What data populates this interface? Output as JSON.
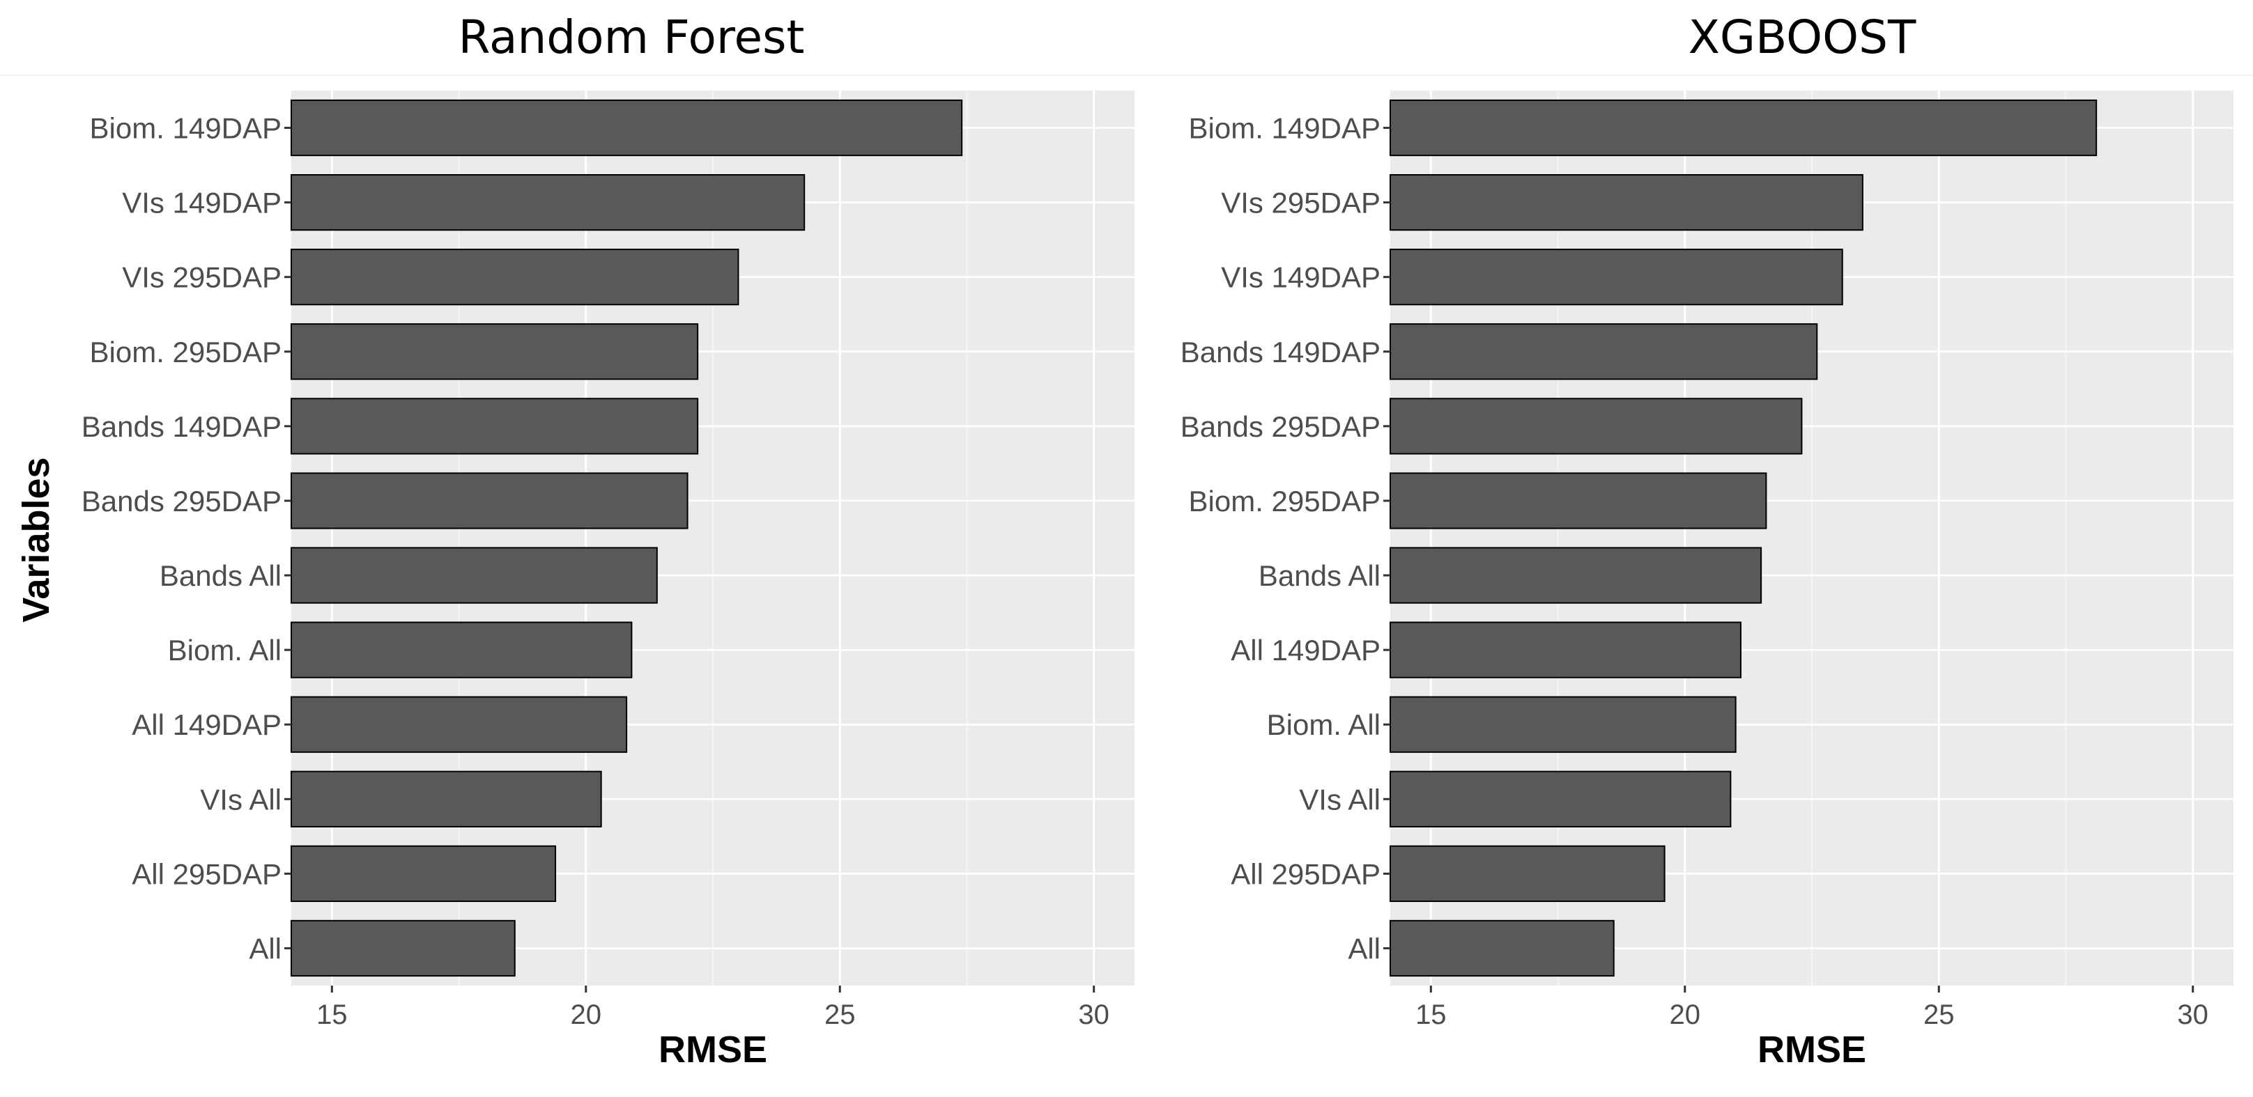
{
  "figure": {
    "ylabel": "Variables",
    "colors": {
      "panel_background": "#ebebeb",
      "grid_major": "#ffffff",
      "bar_fill": "#595959",
      "bar_outline": "#000000",
      "tick_text": "#4d4d4d"
    }
  },
  "chart_data": [
    {
      "type": "bar",
      "orientation": "horizontal",
      "title": "Random Forest",
      "xlabel": "RMSE",
      "ylabel": "Variables",
      "xlim": [
        14.2,
        30.8
      ],
      "xticks": [
        15,
        20,
        25,
        30
      ],
      "grid": true,
      "categories": [
        "Biom. 149DAP",
        "VIs 149DAP",
        "VIs 295DAP",
        "Biom. 295DAP",
        "Bands 149DAP",
        "Bands 295DAP",
        "Bands All",
        "Biom. All",
        "All 149DAP",
        "VIs All",
        "All 295DAP",
        "All"
      ],
      "values": [
        27.4,
        24.3,
        23.0,
        22.2,
        22.2,
        22.0,
        21.4,
        20.9,
        20.8,
        20.3,
        19.4,
        18.6
      ]
    },
    {
      "type": "bar",
      "orientation": "horizontal",
      "title": "XGBOOST",
      "xlabel": "RMSE",
      "ylabel": "",
      "xlim": [
        14.2,
        30.8
      ],
      "xticks": [
        15,
        20,
        25,
        30
      ],
      "grid": true,
      "categories": [
        "Biom. 149DAP",
        "VIs 295DAP",
        "VIs 149DAP",
        "Bands 149DAP",
        "Bands 295DAP",
        "Biom. 295DAP",
        "Bands All",
        "All 149DAP",
        "Biom. All",
        "VIs All",
        "All 295DAP",
        "All"
      ],
      "values": [
        28.1,
        23.5,
        23.1,
        22.6,
        22.3,
        21.6,
        21.5,
        21.1,
        21.0,
        20.9,
        19.6,
        18.6
      ]
    }
  ]
}
